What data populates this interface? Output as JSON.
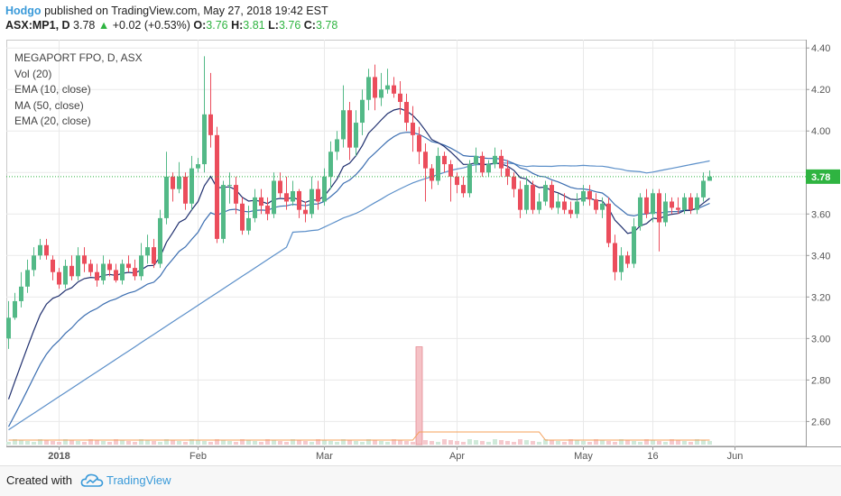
{
  "header": {
    "author": "Hodgo",
    "published_text": "published on TradingView.com, May 27, 2018 19:42 EST"
  },
  "ticker": {
    "symbol": "ASX:MP1, D",
    "last": "3.78",
    "change_arrow": "▲",
    "change": "+0.02 (+0.53%)",
    "o_label": "O:",
    "o": "3.76",
    "h_label": "H:",
    "h": "3.81",
    "l_label": "L:",
    "l": "3.76",
    "c_label": "C:",
    "c": "3.78"
  },
  "legend": {
    "title": "MEGAPORT FPO, D, ASX",
    "vol": "Vol (20)",
    "ema10": "EMA (10, close)",
    "ma50": "MA (50, close)",
    "ema20": "EMA (20, close)"
  },
  "footer": {
    "created_with": "Created with",
    "brand": "TradingView",
    "logo_icon": "tradingview-cloud-icon"
  },
  "chart_data": {
    "type": "candlestick",
    "symbol": "ASX:MP1",
    "interval": "D",
    "ylim": [
      2.48,
      4.44
    ],
    "y_ticks": [
      "4.40",
      "4.20",
      "4.00",
      "3.80",
      "3.60",
      "3.40",
      "3.20",
      "3.00",
      "2.80",
      "2.60"
    ],
    "price_label": "3.78",
    "last_price": 3.78,
    "x_ticks": [
      {
        "label": "2018",
        "bar": 8
      },
      {
        "label": "Feb",
        "bar": 30
      },
      {
        "label": "Mar",
        "bar": 50
      },
      {
        "label": "Apr",
        "bar": 71
      },
      {
        "label": "May",
        "bar": 91
      },
      {
        "label": "16",
        "bar": 102
      },
      {
        "label": "Jun",
        "bar": 115
      }
    ],
    "colors": {
      "up": "#53b987",
      "down": "#eb4d5c",
      "ema10": "#1f2f6e",
      "ema20": "#3a6db0",
      "ma50": "#5b8fc9",
      "grid": "#e9e9e9",
      "price_line": "#2fb441",
      "volume_line": "#f5a05a"
    },
    "candles": [
      [
        3.0,
        3.1,
        2.95,
        3.18
      ],
      [
        3.1,
        3.18,
        3.09,
        3.22
      ],
      [
        3.18,
        3.25,
        3.15,
        3.32
      ],
      [
        3.25,
        3.33,
        3.22,
        3.38
      ],
      [
        3.33,
        3.4,
        3.3,
        3.44
      ],
      [
        3.4,
        3.45,
        3.38,
        3.48
      ],
      [
        3.45,
        3.4,
        3.38,
        3.48
      ],
      [
        3.38,
        3.32,
        3.28,
        3.4
      ],
      [
        3.32,
        3.26,
        3.24,
        3.34
      ],
      [
        3.26,
        3.35,
        3.24,
        3.38
      ],
      [
        3.35,
        3.3,
        3.28,
        3.4
      ],
      [
        3.3,
        3.4,
        3.28,
        3.44
      ],
      [
        3.4,
        3.36,
        3.32,
        3.44
      ],
      [
        3.36,
        3.32,
        3.3,
        3.38
      ],
      [
        3.32,
        3.28,
        3.25,
        3.36
      ],
      [
        3.28,
        3.36,
        3.26,
        3.4
      ],
      [
        3.36,
        3.33,
        3.3,
        3.38
      ],
      [
        3.33,
        3.28,
        3.27,
        3.36
      ],
      [
        3.28,
        3.36,
        3.26,
        3.38
      ],
      [
        3.36,
        3.34,
        3.32,
        3.4
      ],
      [
        3.34,
        3.3,
        3.28,
        3.38
      ],
      [
        3.3,
        3.4,
        3.28,
        3.46
      ],
      [
        3.4,
        3.44,
        3.36,
        3.5
      ],
      [
        3.44,
        3.36,
        3.34,
        3.48
      ],
      [
        3.36,
        3.58,
        3.34,
        3.62
      ],
      [
        3.58,
        3.78,
        3.55,
        3.9
      ],
      [
        3.78,
        3.72,
        3.66,
        3.8
      ],
      [
        3.72,
        3.78,
        3.7,
        3.85
      ],
      [
        3.78,
        3.65,
        3.62,
        3.8
      ],
      [
        3.65,
        3.82,
        3.62,
        3.88
      ],
      [
        3.82,
        3.84,
        3.8,
        3.87
      ],
      [
        3.84,
        4.08,
        3.8,
        4.36
      ],
      [
        4.08,
        3.98,
        3.92,
        4.28
      ],
      [
        3.98,
        3.48,
        3.46,
        4.02
      ],
      [
        3.48,
        3.74,
        3.46,
        3.76
      ],
      [
        3.74,
        3.74,
        3.65,
        3.8
      ],
      [
        3.74,
        3.65,
        3.6,
        3.78
      ],
      [
        3.65,
        3.52,
        3.5,
        3.68
      ],
      [
        3.52,
        3.58,
        3.5,
        3.64
      ],
      [
        3.58,
        3.68,
        3.56,
        3.72
      ],
      [
        3.68,
        3.64,
        3.6,
        3.72
      ],
      [
        3.64,
        3.6,
        3.57,
        3.68
      ],
      [
        3.6,
        3.76,
        3.58,
        3.8
      ],
      [
        3.76,
        3.7,
        3.68,
        3.8
      ],
      [
        3.7,
        3.66,
        3.62,
        3.78
      ],
      [
        3.66,
        3.71,
        3.64,
        3.76
      ],
      [
        3.71,
        3.62,
        3.58,
        3.72
      ],
      [
        3.62,
        3.6,
        3.56,
        3.66
      ],
      [
        3.6,
        3.72,
        3.58,
        3.78
      ],
      [
        3.72,
        3.66,
        3.62,
        3.76
      ],
      [
        3.66,
        3.78,
        3.64,
        3.82
      ],
      [
        3.78,
        3.9,
        3.72,
        3.95
      ],
      [
        3.9,
        3.96,
        3.86,
        4.0
      ],
      [
        3.96,
        4.1,
        3.92,
        4.22
      ],
      [
        4.1,
        3.92,
        3.86,
        4.14
      ],
      [
        3.92,
        4.04,
        3.88,
        4.1
      ],
      [
        4.04,
        4.15,
        3.98,
        4.2
      ],
      [
        4.15,
        4.26,
        4.1,
        4.3
      ],
      [
        4.26,
        4.16,
        4.1,
        4.32
      ],
      [
        4.16,
        4.2,
        4.12,
        4.28
      ],
      [
        4.2,
        4.22,
        4.18,
        4.3
      ],
      [
        4.22,
        4.18,
        4.16,
        4.26
      ],
      [
        4.18,
        4.14,
        4.08,
        4.24
      ],
      [
        4.14,
        4.04,
        4.0,
        4.18
      ],
      [
        4.04,
        3.98,
        3.9,
        4.12
      ],
      [
        3.98,
        3.9,
        3.84,
        4.02
      ],
      [
        3.9,
        3.82,
        3.66,
        3.94
      ],
      [
        3.82,
        3.76,
        3.72,
        3.84
      ],
      [
        3.76,
        3.88,
        3.74,
        3.92
      ],
      [
        3.88,
        3.84,
        3.8,
        3.9
      ],
      [
        3.84,
        3.78,
        3.66,
        3.86
      ],
      [
        3.78,
        3.74,
        3.7,
        3.8
      ],
      [
        3.74,
        3.7,
        3.68,
        3.78
      ],
      [
        3.7,
        3.84,
        3.68,
        3.86
      ],
      [
        3.84,
        3.88,
        3.8,
        3.92
      ],
      [
        3.88,
        3.8,
        3.78,
        3.9
      ],
      [
        3.8,
        3.84,
        3.78,
        3.86
      ],
      [
        3.84,
        3.88,
        3.82,
        3.92
      ],
      [
        3.88,
        3.82,
        3.78,
        3.91
      ],
      [
        3.82,
        3.78,
        3.74,
        3.86
      ],
      [
        3.78,
        3.72,
        3.68,
        3.8
      ],
      [
        3.72,
        3.62,
        3.58,
        3.76
      ],
      [
        3.62,
        3.74,
        3.6,
        3.78
      ],
      [
        3.74,
        3.62,
        3.6,
        3.76
      ],
      [
        3.62,
        3.66,
        3.6,
        3.7
      ],
      [
        3.66,
        3.74,
        3.64,
        3.76
      ],
      [
        3.74,
        3.63,
        3.62,
        3.76
      ],
      [
        3.63,
        3.66,
        3.6,
        3.7
      ],
      [
        3.66,
        3.62,
        3.6,
        3.7
      ],
      [
        3.62,
        3.6,
        3.58,
        3.66
      ],
      [
        3.6,
        3.66,
        3.58,
        3.7
      ],
      [
        3.66,
        3.71,
        3.64,
        3.74
      ],
      [
        3.71,
        3.67,
        3.64,
        3.74
      ],
      [
        3.67,
        3.62,
        3.6,
        3.7
      ],
      [
        3.62,
        3.65,
        3.58,
        3.68
      ],
      [
        3.65,
        3.46,
        3.44,
        3.68
      ],
      [
        3.46,
        3.32,
        3.28,
        3.5
      ],
      [
        3.32,
        3.4,
        3.28,
        3.44
      ],
      [
        3.4,
        3.36,
        3.34,
        3.42
      ],
      [
        3.36,
        3.54,
        3.34,
        3.58
      ],
      [
        3.54,
        3.68,
        3.52,
        3.7
      ],
      [
        3.68,
        3.6,
        3.58,
        3.72
      ],
      [
        3.6,
        3.7,
        3.56,
        3.72
      ],
      [
        3.7,
        3.56,
        3.42,
        3.72
      ],
      [
        3.56,
        3.66,
        3.54,
        3.7
      ],
      [
        3.66,
        3.63,
        3.6,
        3.68
      ],
      [
        3.63,
        3.62,
        3.6,
        3.68
      ],
      [
        3.62,
        3.68,
        3.6,
        3.7
      ],
      [
        3.68,
        3.62,
        3.6,
        3.7
      ],
      [
        3.62,
        3.68,
        3.6,
        3.7
      ],
      [
        3.68,
        3.76,
        3.66,
        3.8
      ],
      [
        3.76,
        3.78,
        3.76,
        3.81
      ]
    ],
    "volume_spike": {
      "bar": 65,
      "relative": 1.0
    },
    "ma50_start": 2.56,
    "ma50_end": 3.78
  }
}
